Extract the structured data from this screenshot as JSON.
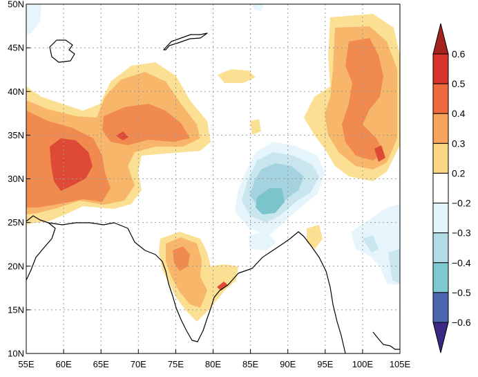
{
  "chart_data": {
    "type": "heatmap",
    "title": "",
    "xlabel": "",
    "ylabel": "",
    "xlim": [
      55,
      105
    ],
    "ylim": [
      10,
      50
    ],
    "x_ticks": [
      "55E",
      "60E",
      "65E",
      "70E",
      "75E",
      "80E",
      "85E",
      "90E",
      "95E",
      "100E",
      "105E"
    ],
    "y_ticks": [
      "10N",
      "15N",
      "20N",
      "25N",
      "30N",
      "35N",
      "40N",
      "45N",
      "50N"
    ],
    "grid": true,
    "colorbar": {
      "placement": "right",
      "labels": [
        "0.6",
        "0.5",
        "0.4",
        "0.3",
        "0.2",
        "−0.2",
        "−0.3",
        "−0.4",
        "−0.5",
        "−0.6"
      ],
      "colors": [
        "#a5231e",
        "#d7352c",
        "#ee6a3f",
        "#f7a55d",
        "#fad583",
        "#ffffff",
        "#e3f4fa",
        "#b3dbe6",
        "#7ec8cf",
        "#4a66ad",
        "#3a2882"
      ]
    },
    "colors": {
      "pos02": "#fbe094",
      "pos03": "#f8b66a",
      "pos04": "#f08a4e",
      "pos05": "#de4a35",
      "neg02": "#e6f5fb",
      "neg03": "#c9e6ef",
      "neg04": "#a4d3df",
      "neg05": "#7cc4cc",
      "coast": "#000000",
      "grid": "#999999"
    }
  }
}
